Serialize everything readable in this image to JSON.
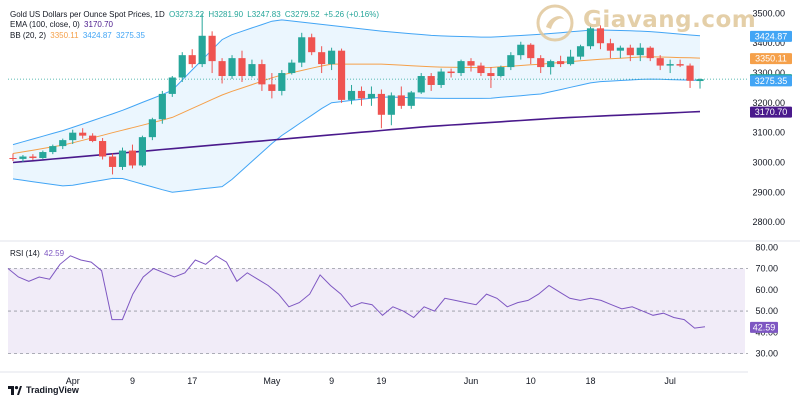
{
  "legend": {
    "title": "Gold US Dollars per Ounce Spot Prices, 1D",
    "ohlc": {
      "o": "O3273.22",
      "h": "H3281.90",
      "l": "L3247.83",
      "c": "C3279.52",
      "chg": "+5.26 (+0.16%)"
    },
    "ema_label": "EMA (100, close, 0)",
    "ema_value": "3170.70",
    "bb_label": "BB (20, 2)",
    "bb_basis": "3350.11",
    "bb_upper": "3424.87",
    "bb_lower": "3275.35",
    "rsi_label": "RSI (14)",
    "rsi_value": "42.59"
  },
  "logo": {
    "text": "Giavang.com"
  },
  "brand": {
    "text": "TradingView"
  },
  "colors": {
    "up": "#26a69a",
    "down": "#ef5350",
    "ema": "#4a1a8c",
    "bb_basis": "#f5a04a",
    "bb_band": "#42a5f5",
    "bb_fill": "#e3f2fd",
    "rsi": "#7e57c2",
    "rsi_fill": "#ede7f6"
  },
  "chart_data": [
    {
      "type": "candlestick",
      "title": "Gold US Dollars per Ounce Spot Prices, 1D",
      "y_ticks": [
        "3500.00",
        "3400.00",
        "3300.00",
        "3200.00",
        "3100.00",
        "3000.00",
        "2900.00",
        "2800.00"
      ],
      "ylim": [
        2740,
        3545
      ],
      "x_ticks": [
        {
          "label": "Apr",
          "i": 6
        },
        {
          "label": "9",
          "i": 12
        },
        {
          "label": "17",
          "i": 18
        },
        {
          "label": "May",
          "i": 26
        },
        {
          "label": "9",
          "i": 32
        },
        {
          "label": "19",
          "i": 37
        },
        {
          "label": "Jun",
          "i": 46
        },
        {
          "label": "10",
          "i": 52
        },
        {
          "label": "18",
          "i": 58
        },
        {
          "label": "Jul",
          "i": 66
        }
      ],
      "price_labels": [
        {
          "text": "3424.87",
          "value": 3424.87,
          "color": "#42a5f5"
        },
        {
          "text": "3350.11",
          "value": 3350.11,
          "color": "#f5a04a"
        },
        {
          "text": "3279.52",
          "value": 3279.52,
          "color": "#26a69a"
        },
        {
          "text": "3275.35",
          "value": 3275.35,
          "color": "#42a5f5"
        },
        {
          "text": "3170.70",
          "value": 3170.7,
          "color": "#4a1a8c"
        }
      ],
      "candles": [
        [
          3015,
          3030,
          3005,
          3012
        ],
        [
          3012,
          3025,
          3002,
          3020
        ],
        [
          3020,
          3028,
          3008,
          3015
        ],
        [
          3015,
          3040,
          3012,
          3035
        ],
        [
          3035,
          3060,
          3028,
          3055
        ],
        [
          3055,
          3080,
          3045,
          3075
        ],
        [
          3075,
          3110,
          3062,
          3100
        ],
        [
          3100,
          3115,
          3080,
          3090
        ],
        [
          3090,
          3098,
          3068,
          3072
        ],
        [
          3072,
          3082,
          3010,
          3020
        ],
        [
          3020,
          3030,
          2960,
          2985
        ],
        [
          2985,
          3050,
          2975,
          3040
        ],
        [
          3040,
          3060,
          2980,
          2990
        ],
        [
          2990,
          3090,
          2985,
          3085
        ],
        [
          3085,
          3150,
          3075,
          3145
        ],
        [
          3145,
          3240,
          3130,
          3230
        ],
        [
          3230,
          3290,
          3220,
          3285
        ],
        [
          3285,
          3370,
          3270,
          3360
        ],
        [
          3360,
          3380,
          3318,
          3330
        ],
        [
          3330,
          3500,
          3320,
          3425
        ],
        [
          3425,
          3440,
          3300,
          3340
        ],
        [
          3340,
          3350,
          3265,
          3290
        ],
        [
          3290,
          3360,
          3280,
          3350
        ],
        [
          3350,
          3375,
          3270,
          3290
        ],
        [
          3290,
          3345,
          3285,
          3330
        ],
        [
          3330,
          3345,
          3240,
          3262
        ],
        [
          3262,
          3300,
          3215,
          3240
        ],
        [
          3240,
          3310,
          3225,
          3300
        ],
        [
          3300,
          3345,
          3295,
          3335
        ],
        [
          3335,
          3435,
          3320,
          3420
        ],
        [
          3420,
          3432,
          3360,
          3370
        ],
        [
          3370,
          3390,
          3300,
          3330
        ],
        [
          3330,
          3385,
          3310,
          3375
        ],
        [
          3375,
          3382,
          3200,
          3210
        ],
        [
          3210,
          3260,
          3195,
          3240
        ],
        [
          3240,
          3255,
          3190,
          3215
        ],
        [
          3215,
          3255,
          3190,
          3230
        ],
        [
          3230,
          3245,
          3115,
          3160
        ],
        [
          3160,
          3235,
          3125,
          3225
        ],
        [
          3225,
          3255,
          3180,
          3190
        ],
        [
          3190,
          3240,
          3180,
          3235
        ],
        [
          3235,
          3300,
          3230,
          3290
        ],
        [
          3290,
          3300,
          3240,
          3260
        ],
        [
          3260,
          3315,
          3250,
          3305
        ],
        [
          3305,
          3315,
          3285,
          3300
        ],
        [
          3300,
          3345,
          3290,
          3340
        ],
        [
          3340,
          3350,
          3305,
          3325
        ],
        [
          3325,
          3335,
          3290,
          3300
        ],
        [
          3300,
          3320,
          3250,
          3290
        ],
        [
          3290,
          3325,
          3285,
          3320
        ],
        [
          3320,
          3370,
          3310,
          3360
        ],
        [
          3360,
          3405,
          3345,
          3395
        ],
        [
          3395,
          3400,
          3330,
          3350
        ],
        [
          3350,
          3360,
          3300,
          3320
        ],
        [
          3320,
          3345,
          3295,
          3340
        ],
        [
          3340,
          3358,
          3320,
          3330
        ],
        [
          3330,
          3378,
          3325,
          3355
        ],
        [
          3355,
          3395,
          3345,
          3390
        ],
        [
          3390,
          3460,
          3380,
          3450
        ],
        [
          3450,
          3460,
          3380,
          3400
        ],
        [
          3400,
          3415,
          3350,
          3375
        ],
        [
          3375,
          3392,
          3350,
          3385
        ],
        [
          3385,
          3395,
          3340,
          3360
        ],
        [
          3360,
          3400,
          3340,
          3385
        ],
        [
          3385,
          3390,
          3340,
          3350
        ],
        [
          3350,
          3360,
          3310,
          3325
        ],
        [
          3325,
          3345,
          3300,
          3330
        ],
        [
          3330,
          3345,
          3320,
          3325
        ],
        [
          3325,
          3332,
          3250,
          3274
        ],
        [
          3273.22,
          3281.9,
          3247.83,
          3279.52
        ]
      ],
      "ema": [
        3000,
        3040,
        3080,
        3120,
        3150,
        3170.7
      ],
      "bb_basis": [
        3030,
        3060,
        3105,
        3150,
        3230,
        3290,
        3330,
        3330,
        3320,
        3318,
        3330,
        3345,
        3355,
        3350.11
      ],
      "bb_upper": [
        3060,
        3110,
        3170,
        3240,
        3420,
        3480,
        3460,
        3440,
        3425,
        3420,
        3430,
        3445,
        3440,
        3424.87
      ],
      "bb_lower": [
        2945,
        2920,
        2950,
        2900,
        2920,
        3080,
        3200,
        3220,
        3215,
        3215,
        3230,
        3270,
        3280,
        3275.35
      ]
    },
    {
      "type": "line",
      "title": "RSI (14)",
      "y_ticks": [
        "80.00",
        "70.00",
        "60.00",
        "50.00",
        "40.00",
        "30.00"
      ],
      "ylim": [
        27,
        82
      ],
      "values": [
        70,
        66,
        64,
        66,
        65,
        72,
        76,
        74,
        73,
        69,
        46,
        46,
        58,
        66,
        70,
        68,
        66,
        68,
        74,
        72,
        76,
        73,
        64,
        68,
        65,
        62,
        58,
        52,
        54,
        58,
        67,
        62,
        58,
        52,
        54,
        53,
        48,
        52,
        50,
        47,
        52,
        50,
        56,
        55,
        54,
        53,
        58,
        56,
        52,
        54,
        55,
        58,
        62,
        59,
        56,
        55,
        56,
        55,
        53,
        51,
        52,
        50,
        48,
        49,
        47,
        46,
        42,
        42.59
      ],
      "overbought": 70,
      "oversold": 30
    }
  ]
}
